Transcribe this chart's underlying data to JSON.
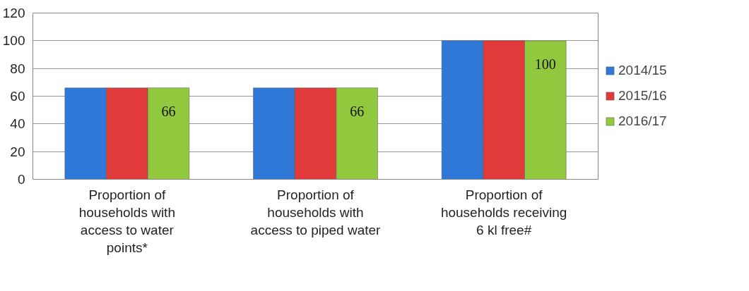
{
  "chart_data": {
    "type": "bar",
    "categories": [
      "Proportion of households with access to water points*",
      "Proportion of households with access to piped water",
      "Proportion of households receiving 6 kl free#"
    ],
    "series": [
      {
        "name": "2014/15",
        "color": "#2f78d8",
        "values": [
          66,
          66,
          100
        ]
      },
      {
        "name": "2015/16",
        "color": "#e03a3a",
        "values": [
          66,
          66,
          100
        ]
      },
      {
        "name": "2016/17",
        "color": "#92c83e",
        "values": [
          66,
          66,
          100
        ],
        "value_labels": [
          "66",
          "66",
          "100"
        ]
      }
    ],
    "ylim": [
      0,
      120
    ],
    "yticks": [
      0,
      20,
      40,
      60,
      80,
      100,
      120
    ],
    "grid": "y",
    "legend": "right"
  }
}
